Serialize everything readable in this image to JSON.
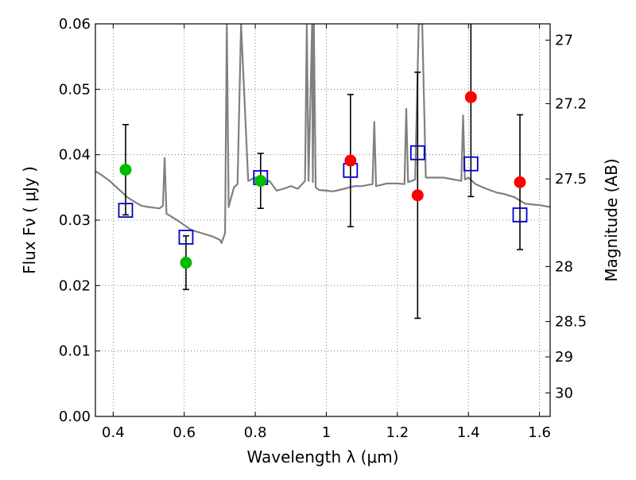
{
  "chart_data": {
    "type": "scatter",
    "xlabel": "Wavelength  λ (μm)",
    "ylabel": "Flux  Fν  ( μJy )",
    "y2label": "Magnitude (AB)",
    "xlim": [
      0.35,
      1.63
    ],
    "ylim": [
      0.0,
      0.06
    ],
    "grid": true,
    "x_ticks": [
      0.4,
      0.6,
      0.8,
      1.0,
      1.2,
      1.4,
      1.6
    ],
    "x_tick_labels": [
      "0.4",
      "0.6",
      "0.8",
      "1",
      "1.2",
      "1.4",
      "1.6"
    ],
    "y_ticks": [
      0.0,
      0.01,
      0.02,
      0.03,
      0.04,
      0.05,
      0.06
    ],
    "y_tick_labels": [
      "0.00",
      "0.01",
      "0.02",
      "0.03",
      "0.04",
      "0.05",
      "0.06"
    ],
    "y2_ticks": [
      {
        "label": "27",
        "flux": 0.0575
      },
      {
        "label": "27.2",
        "flux": 0.0478
      },
      {
        "label": "27.5",
        "flux": 0.0363
      },
      {
        "label": "28",
        "flux": 0.0229
      },
      {
        "label": "28.5",
        "flux": 0.0145
      },
      {
        "label": "29",
        "flux": 0.0091
      },
      {
        "label": "30",
        "flux": 0.0036
      }
    ],
    "colors": {
      "model": "#808080",
      "green_points": "#00bb00",
      "red_points": "#ff0000",
      "squares": "#0000cc",
      "errorbars": "#000000"
    },
    "series": [
      {
        "kind": "line",
        "x": [
          0.35,
          0.37,
          0.39,
          0.4,
          0.42,
          0.44,
          0.46,
          0.48,
          0.5,
          0.53,
          0.54,
          0.545,
          0.55,
          0.58,
          0.62,
          0.65,
          0.68,
          0.7,
          0.705,
          0.715,
          0.72,
          0.725,
          0.73,
          0.74,
          0.75,
          0.76,
          0.78,
          0.8,
          0.82,
          0.84,
          0.86,
          0.88,
          0.9,
          0.92,
          0.94,
          0.945,
          0.95,
          0.96,
          0.962,
          0.965,
          0.97,
          0.975,
          0.98,
          1.0,
          1.02,
          1.05,
          1.08,
          1.1,
          1.13,
          1.135,
          1.14,
          1.17,
          1.2,
          1.22,
          1.225,
          1.23,
          1.25,
          1.26,
          1.27,
          1.28,
          1.3,
          1.33,
          1.36,
          1.38,
          1.385,
          1.39,
          1.4,
          1.42,
          1.45,
          1.48,
          1.5,
          1.53,
          1.56,
          1.6,
          1.63
        ],
        "y": [
          0.0375,
          0.0368,
          0.036,
          0.0355,
          0.0345,
          0.0335,
          0.0328,
          0.0322,
          0.032,
          0.0318,
          0.0322,
          0.0395,
          0.031,
          0.03,
          0.0285,
          0.028,
          0.0275,
          0.027,
          0.0265,
          0.028,
          0.06,
          0.032,
          0.033,
          0.035,
          0.0355,
          0.06,
          0.036,
          0.0365,
          0.0355,
          0.036,
          0.0345,
          0.0348,
          0.0352,
          0.0348,
          0.036,
          0.06,
          0.036,
          0.06,
          0.0358,
          0.06,
          0.035,
          0.0348,
          0.0346,
          0.0345,
          0.0344,
          0.0348,
          0.0352,
          0.0352,
          0.0355,
          0.045,
          0.0352,
          0.0356,
          0.0356,
          0.0355,
          0.047,
          0.0358,
          0.0362,
          0.06,
          0.06,
          0.0365,
          0.0365,
          0.0365,
          0.0362,
          0.036,
          0.046,
          0.0362,
          0.0365,
          0.0355,
          0.0348,
          0.0342,
          0.034,
          0.0335,
          0.0325,
          0.0323,
          0.032
        ]
      },
      {
        "kind": "circle",
        "x": [
          0.435,
          0.605,
          0.815
        ],
        "y": [
          0.0377,
          0.0235,
          0.036
        ],
        "yerr": [
          0.0069,
          0.0041,
          0.0042
        ]
      },
      {
        "kind": "circle",
        "x": [
          1.068,
          1.257,
          1.407,
          1.545
        ],
        "y": [
          0.0391,
          0.0338,
          0.0488,
          0.0358
        ],
        "yerr": [
          0.0101,
          0.0188,
          0.0152,
          0.0103
        ]
      },
      {
        "kind": "square",
        "x": [
          0.435,
          0.605,
          0.815,
          1.068,
          1.257,
          1.407,
          1.545
        ],
        "y": [
          0.0315,
          0.0274,
          0.0365,
          0.0376,
          0.0403,
          0.0386,
          0.0308
        ]
      }
    ]
  }
}
